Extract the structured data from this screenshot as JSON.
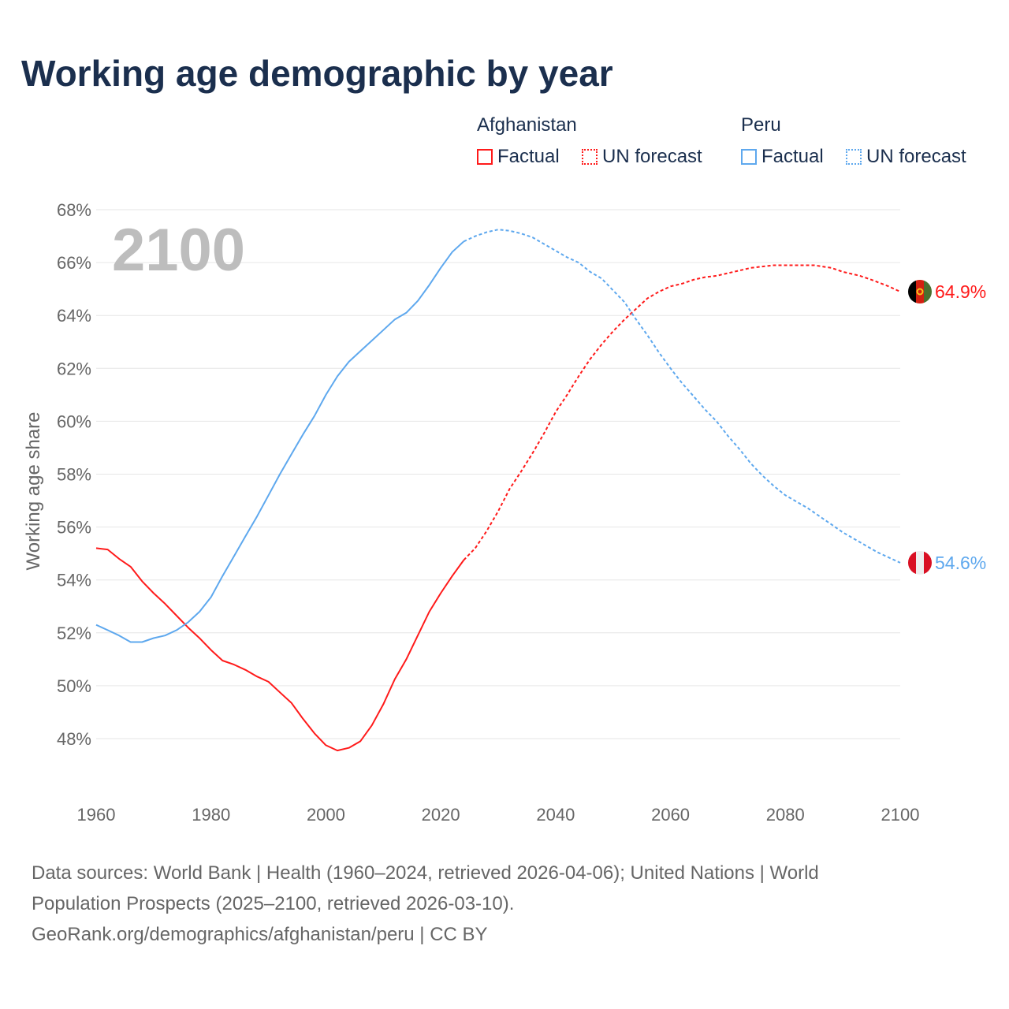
{
  "title": "Working age demographic by year",
  "legend": {
    "groups": [
      {
        "country": "Afghanistan",
        "factual": "Factual",
        "forecast": "UN forecast",
        "color": "#ff1a1a"
      },
      {
        "country": "Peru",
        "factual": "Factual",
        "forecast": "UN forecast",
        "color": "#5ea8ee"
      }
    ]
  },
  "chart_data": {
    "type": "line",
    "title": "Working age demographic by year",
    "ylabel": "Working age share",
    "xlabel": "",
    "year_label": "2100",
    "xlim": [
      1960,
      2100
    ],
    "ylim": [
      46.5,
      68
    ],
    "x_ticks": [
      "1960",
      "1980",
      "2000",
      "2020",
      "2040",
      "2060",
      "2080",
      "2100"
    ],
    "y_ticks": [
      "48%",
      "50%",
      "52%",
      "54%",
      "56%",
      "58%",
      "60%",
      "62%",
      "64%",
      "66%",
      "68%"
    ],
    "forecast_start": 2024,
    "grid": true,
    "series": [
      {
        "name": "Afghanistan",
        "color": "#ff1a1a",
        "end_label": "64.9%",
        "flag": "afghanistan-flag",
        "x": [
          1960,
          1962,
          1964,
          1966,
          1968,
          1970,
          1972,
          1974,
          1976,
          1978,
          1980,
          1982,
          1984,
          1986,
          1988,
          1990,
          1992,
          1994,
          1996,
          1998,
          2000,
          2002,
          2004,
          2006,
          2008,
          2010,
          2012,
          2014,
          2016,
          2018,
          2020,
          2022,
          2024,
          2026,
          2028,
          2030,
          2032,
          2034,
          2036,
          2038,
          2040,
          2042,
          2044,
          2046,
          2048,
          2050,
          2052,
          2054,
          2056,
          2058,
          2060,
          2062,
          2064,
          2066,
          2068,
          2070,
          2072,
          2074,
          2076,
          2078,
          2080,
          2085,
          2088,
          2090,
          2093,
          2095,
          2098,
          2100
        ],
        "y": [
          55.2,
          55.15,
          54.8,
          54.5,
          53.95,
          53.5,
          53.1,
          52.65,
          52.2,
          51.8,
          51.35,
          50.95,
          50.8,
          50.6,
          50.35,
          50.15,
          49.75,
          49.35,
          48.75,
          48.2,
          47.75,
          47.55,
          47.65,
          47.9,
          48.5,
          49.3,
          50.25,
          51.0,
          51.9,
          52.8,
          53.5,
          54.15,
          54.75,
          55.2,
          55.85,
          56.6,
          57.45,
          58.1,
          58.8,
          59.55,
          60.35,
          61.0,
          61.7,
          62.35,
          62.9,
          63.4,
          63.85,
          64.25,
          64.65,
          64.9,
          65.1,
          65.2,
          65.35,
          65.45,
          65.5,
          65.6,
          65.7,
          65.8,
          65.85,
          65.9,
          65.9,
          65.9,
          65.8,
          65.65,
          65.5,
          65.35,
          65.1,
          64.9
        ]
      },
      {
        "name": "Peru",
        "color": "#5ea8ee",
        "end_label": "54.6%",
        "flag": "peru-flag",
        "x": [
          1960,
          1962,
          1964,
          1966,
          1968,
          1970,
          1972,
          1974,
          1976,
          1978,
          1980,
          1982,
          1984,
          1986,
          1988,
          1990,
          1992,
          1994,
          1996,
          1998,
          2000,
          2002,
          2004,
          2006,
          2008,
          2010,
          2012,
          2014,
          2016,
          2018,
          2020,
          2022,
          2024,
          2026,
          2028,
          2030,
          2032,
          2034,
          2036,
          2038,
          2040,
          2042,
          2044,
          2046,
          2048,
          2050,
          2052,
          2054,
          2056,
          2058,
          2060,
          2062,
          2064,
          2066,
          2068,
          2070,
          2072,
          2074,
          2076,
          2078,
          2080,
          2082,
          2084,
          2086,
          2088,
          2090,
          2092,
          2094,
          2096,
          2098,
          2100
        ],
        "y": [
          52.3,
          52.1,
          51.9,
          51.65,
          51.65,
          51.8,
          51.9,
          52.1,
          52.4,
          52.8,
          53.35,
          54.15,
          54.9,
          55.65,
          56.4,
          57.2,
          58.0,
          58.75,
          59.5,
          60.2,
          61.0,
          61.7,
          62.25,
          62.65,
          63.05,
          63.45,
          63.85,
          64.1,
          64.55,
          65.15,
          65.8,
          66.4,
          66.8,
          67.0,
          67.15,
          67.25,
          67.2,
          67.1,
          66.95,
          66.7,
          66.45,
          66.2,
          66.0,
          65.65,
          65.4,
          64.95,
          64.5,
          63.85,
          63.25,
          62.6,
          62.0,
          61.45,
          60.95,
          60.45,
          60.0,
          59.45,
          58.95,
          58.4,
          57.95,
          57.55,
          57.2,
          56.95,
          56.7,
          56.4,
          56.1,
          55.8,
          55.55,
          55.3,
          55.05,
          54.85,
          54.65
        ]
      }
    ]
  },
  "footer": {
    "line1": "Data sources: World Bank | Health (1960–2024, retrieved 2026-04-06); United Nations | World",
    "line2": "Population Prospects (2025–2100, retrieved 2026-03-10).",
    "line3": "GeoRank.org/demographics/afghanistan/peru | CC BY"
  }
}
